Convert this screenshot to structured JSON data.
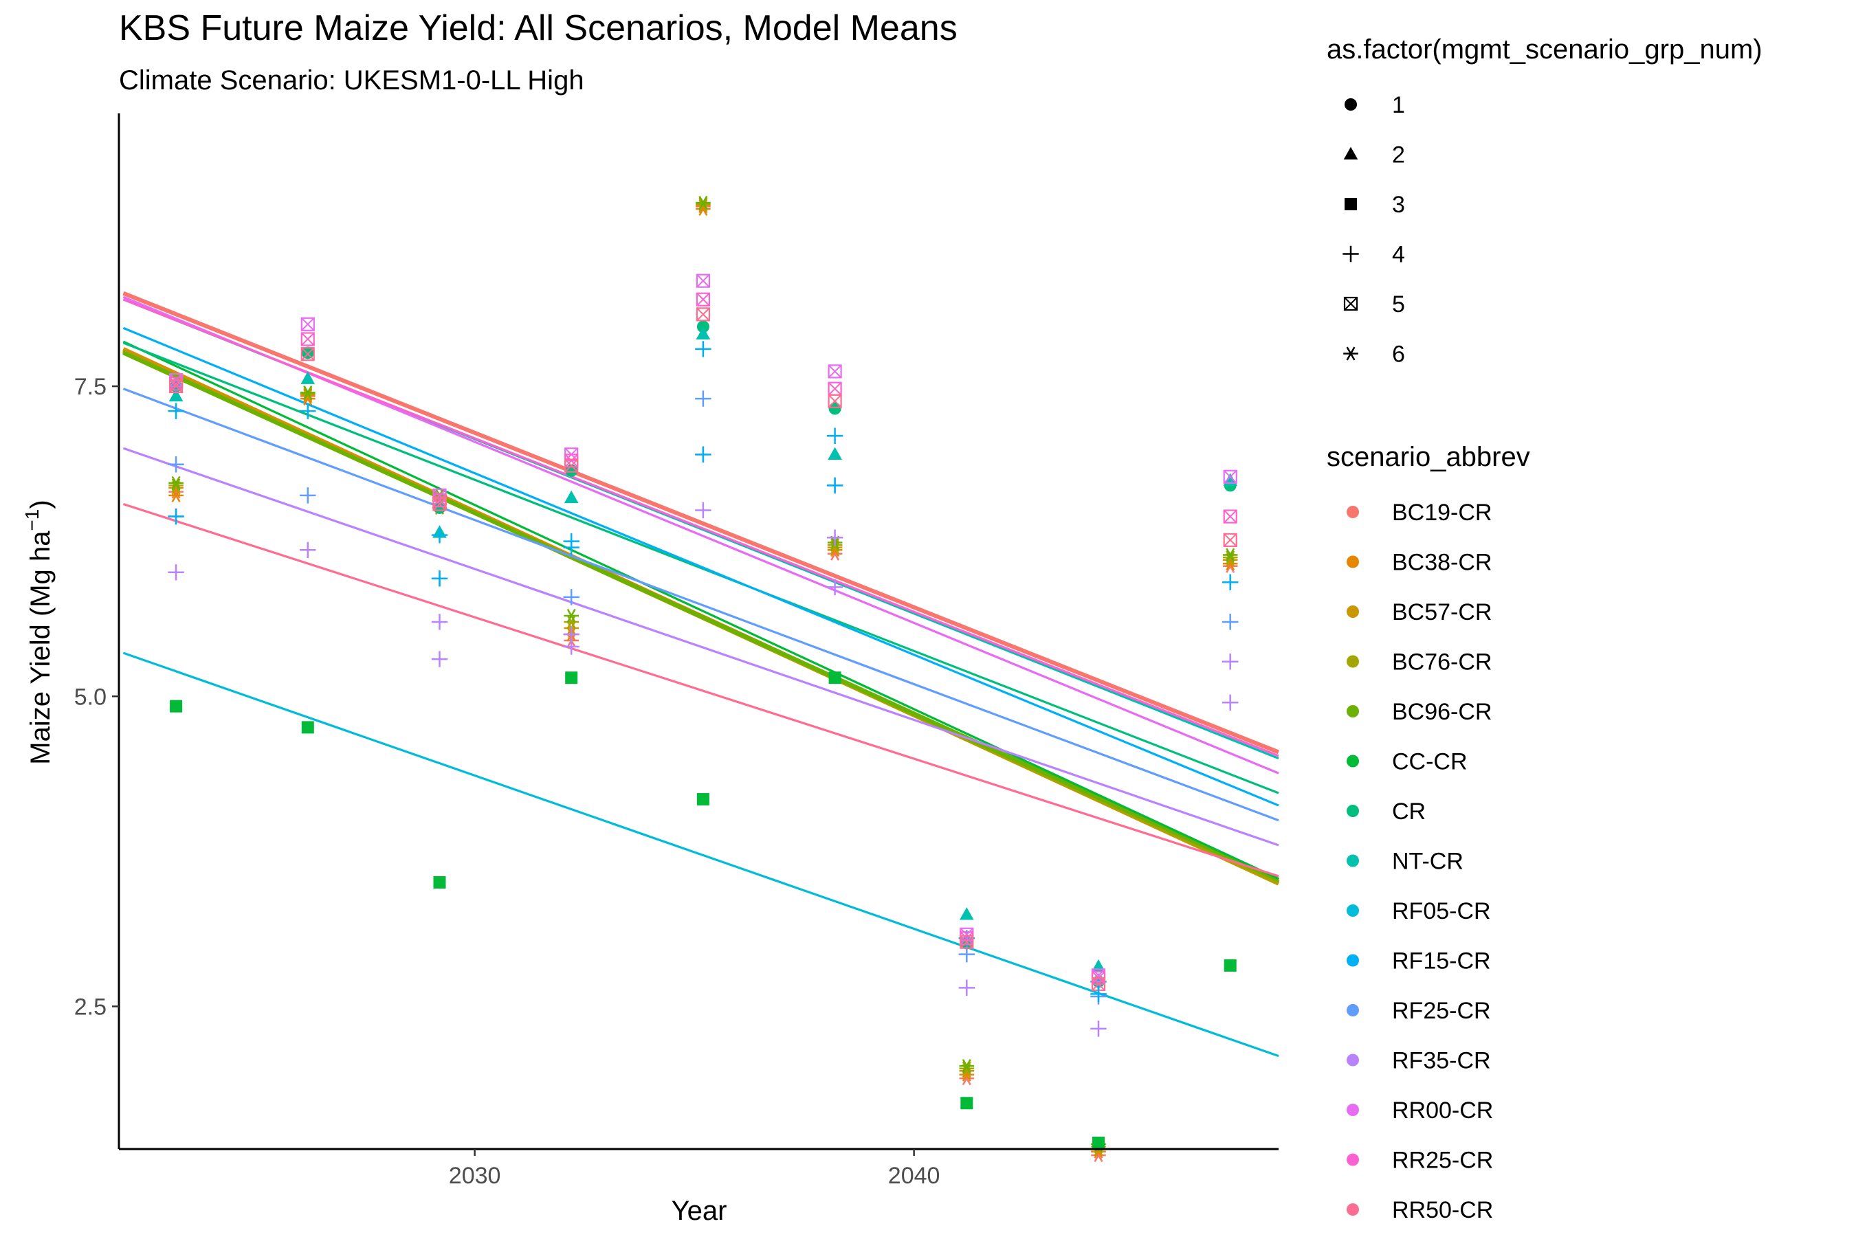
{
  "chart_data": {
    "type": "scatter",
    "title": "KBS  Future Maize Yield: All Scenarios, Model Means",
    "subtitle": "Climate Scenario: UKESM1-0-LL High",
    "xlabel": "Year",
    "ylabel": "Maize Yield (Mg ha",
    "ylabel_sup": "−1",
    "ylabel_close": ")",
    "xlim": [
      2021.9,
      2048.3
    ],
    "ylim": [
      1.35,
      9.7
    ],
    "x_ticks": [
      2030,
      2040
    ],
    "x_tick_labels": [
      "2030",
      "2040"
    ],
    "y_ticks": [
      2.5,
      5.0,
      7.5
    ],
    "y_tick_labels": [
      "2.5",
      "5.0",
      "7.5"
    ],
    "grid": false,
    "legend_placement": "right",
    "shape_legend": {
      "title": "as.factor(mgmt_scenario_grp_num)",
      "items": [
        {
          "label": "1",
          "shape": "circle"
        },
        {
          "label": "2",
          "shape": "triangle"
        },
        {
          "label": "3",
          "shape": "square"
        },
        {
          "label": "4",
          "shape": "plus"
        },
        {
          "label": "5",
          "shape": "boxed-x"
        },
        {
          "label": "6",
          "shape": "asterisk"
        }
      ]
    },
    "series": [
      {
        "name": "BC19-CR",
        "color": "#F8766D",
        "shape": "asterisk",
        "trend": [
          [
            2022,
            8.25
          ],
          [
            2048.3,
            4.55
          ]
        ],
        "points": [
          [
            2023.2,
            6.65
          ],
          [
            2026.2,
            7.42
          ],
          [
            2029.2,
            6.55
          ],
          [
            2032.2,
            5.45
          ],
          [
            2035.2,
            8.95
          ],
          [
            2038.2,
            6.15
          ],
          [
            2041.2,
            1.92
          ],
          [
            2044.2,
            1.3
          ],
          [
            2047.2,
            6.05
          ]
        ]
      },
      {
        "name": "BC38-CR",
        "color": "#E58700",
        "shape": "asterisk",
        "trend": [
          [
            2022,
            7.8
          ],
          [
            2048.3,
            3.5
          ]
        ],
        "points": [
          [
            2023.2,
            6.62
          ],
          [
            2026.2,
            7.4
          ],
          [
            2029.2,
            6.52
          ],
          [
            2032.2,
            5.5
          ],
          [
            2035.2,
            8.93
          ],
          [
            2038.2,
            6.18
          ],
          [
            2041.2,
            1.95
          ],
          [
            2044.2,
            1.33
          ],
          [
            2047.2,
            6.07
          ]
        ]
      },
      {
        "name": "BC57-CR",
        "color": "#C99800",
        "shape": "asterisk",
        "trend": [
          [
            2022,
            7.79
          ],
          [
            2048.3,
            3.49
          ]
        ],
        "points": [
          [
            2023.2,
            6.68
          ],
          [
            2026.2,
            7.43
          ],
          [
            2029.2,
            6.58
          ],
          [
            2032.2,
            5.55
          ],
          [
            2035.2,
            8.96
          ],
          [
            2038.2,
            6.2
          ],
          [
            2041.2,
            1.98
          ],
          [
            2044.2,
            1.35
          ],
          [
            2047.2,
            6.1
          ]
        ]
      },
      {
        "name": "BC76-CR",
        "color": "#A3A500",
        "shape": "asterisk",
        "trend": [
          [
            2022,
            7.78
          ],
          [
            2048.3,
            3.5
          ]
        ],
        "points": [
          [
            2023.2,
            6.7
          ],
          [
            2026.2,
            7.44
          ],
          [
            2029.2,
            6.6
          ],
          [
            2032.2,
            5.6
          ],
          [
            2035.2,
            8.97
          ],
          [
            2038.2,
            6.22
          ],
          [
            2041.2,
            2.0
          ],
          [
            2044.2,
            1.37
          ],
          [
            2047.2,
            6.12
          ]
        ]
      },
      {
        "name": "BC96-CR",
        "color": "#6BB100",
        "shape": "asterisk",
        "trend": [
          [
            2022,
            7.77
          ],
          [
            2048.3,
            3.52
          ]
        ],
        "points": [
          [
            2023.2,
            6.72
          ],
          [
            2026.2,
            7.45
          ],
          [
            2029.2,
            6.62
          ],
          [
            2032.2,
            5.65
          ],
          [
            2035.2,
            8.98
          ],
          [
            2038.2,
            6.24
          ],
          [
            2041.2,
            2.02
          ],
          [
            2044.2,
            1.39
          ],
          [
            2047.2,
            6.14
          ]
        ]
      },
      {
        "name": "CC-CR",
        "color": "#00BA38",
        "shape": "square",
        "trend": [
          [
            2022,
            7.86
          ],
          [
            2048.3,
            3.53
          ]
        ],
        "points": [
          [
            2023.2,
            4.92
          ],
          [
            2026.2,
            4.75
          ],
          [
            2029.2,
            3.5
          ],
          [
            2032.2,
            5.15
          ],
          [
            2035.2,
            4.17
          ],
          [
            2038.2,
            5.15
          ],
          [
            2041.2,
            1.72
          ],
          [
            2044.2,
            1.4
          ],
          [
            2047.2,
            2.83
          ]
        ]
      },
      {
        "name": "CR",
        "color": "#00BF7D",
        "shape": "circle",
        "trend": [
          [
            2022,
            7.85
          ],
          [
            2048.3,
            4.22
          ]
        ],
        "points": [
          [
            2023.2,
            7.5
          ],
          [
            2026.2,
            7.77
          ],
          [
            2029.2,
            6.52
          ],
          [
            2032.2,
            6.82
          ],
          [
            2035.2,
            7.98
          ],
          [
            2038.2,
            7.32
          ],
          [
            2041.2,
            3.01
          ],
          [
            2044.2,
            2.7
          ],
          [
            2047.2,
            6.7
          ]
        ]
      },
      {
        "name": "NT-CR",
        "color": "#00C0AF",
        "shape": "triangle",
        "trend": [
          [
            2022,
            8.2
          ],
          [
            2048.3,
            4.5
          ]
        ],
        "points": [
          [
            2023.2,
            7.42
          ],
          [
            2026.2,
            7.56
          ],
          [
            2029.2,
            6.32
          ],
          [
            2032.2,
            6.6
          ],
          [
            2035.2,
            7.92
          ],
          [
            2038.2,
            6.95
          ],
          [
            2041.2,
            3.24
          ],
          [
            2044.2,
            2.82
          ],
          [
            2047.2,
            6.74
          ]
        ]
      },
      {
        "name": "RF05-CR",
        "color": "#00BCD8",
        "shape": "square",
        "trend": [
          [
            2022,
            5.35
          ],
          [
            2048.3,
            2.1
          ]
        ],
        "points": []
      },
      {
        "name": "RF15-CR",
        "color": "#00B0F6",
        "shape": "plus",
        "trend": [
          [
            2022,
            7.97
          ],
          [
            2048.3,
            4.12
          ]
        ],
        "points": [
          [
            2023.2,
            7.3
          ],
          [
            2026.2,
            7.3
          ],
          [
            2029.2,
            6.3
          ],
          [
            2032.2,
            6.25
          ],
          [
            2035.2,
            7.8
          ],
          [
            2038.2,
            7.1
          ],
          [
            2041.2,
            3.05
          ],
          [
            2044.2,
            2.7
          ],
          [
            2047.2,
            5.92
          ]
        ]
      },
      {
        "name": "RF25-CR",
        "color": "#619CFF",
        "shape": "plus",
        "trend": [
          [
            2022,
            7.48
          ],
          [
            2048.3,
            4.0
          ]
        ],
        "points": [
          [
            2023.2,
            6.87
          ],
          [
            2026.2,
            6.62
          ],
          [
            2029.2,
            5.95
          ],
          [
            2032.2,
            5.8
          ],
          [
            2035.2,
            7.4
          ],
          [
            2038.2,
            6.7
          ],
          [
            2041.2,
            2.92
          ],
          [
            2044.2,
            2.58
          ],
          [
            2047.2,
            5.6
          ]
        ]
      },
      {
        "name": "RF35-CR",
        "color": "#B983FF",
        "shape": "plus",
        "trend": [
          [
            2022,
            7.0
          ],
          [
            2048.3,
            3.8
          ]
        ],
        "points": [
          [
            2023.2,
            6.45
          ],
          [
            2026.2,
            6.18
          ],
          [
            2029.2,
            5.6
          ],
          [
            2032.2,
            5.5
          ],
          [
            2035.2,
            6.95
          ],
          [
            2038.2,
            6.28
          ],
          [
            2041.2,
            2.65
          ],
          [
            2044.2,
            2.32
          ],
          [
            2047.2,
            5.28
          ]
        ]
      },
      {
        "name": "RR00-CR",
        "color": "#E76BF3",
        "shape": "boxed-x",
        "trend": [
          [
            2022,
            8.22
          ],
          [
            2048.3,
            4.38
          ]
        ],
        "points": [
          [
            2023.2,
            7.55
          ],
          [
            2026.2,
            8.0
          ],
          [
            2029.2,
            6.62
          ],
          [
            2032.2,
            6.95
          ],
          [
            2035.2,
            8.35
          ],
          [
            2038.2,
            7.62
          ],
          [
            2041.2,
            3.08
          ],
          [
            2044.2,
            2.75
          ],
          [
            2047.2,
            6.77
          ]
        ]
      },
      {
        "name": "RR25-CR",
        "color": "#FD61D1",
        "shape": "boxed-x",
        "trend": [
          [
            2022,
            8.2
          ],
          [
            2048.3,
            4.52
          ]
        ],
        "points": [
          [
            2023.2,
            7.52
          ],
          [
            2026.2,
            7.88
          ],
          [
            2029.2,
            6.58
          ],
          [
            2032.2,
            6.9
          ],
          [
            2035.2,
            8.2
          ],
          [
            2038.2,
            7.48
          ],
          [
            2041.2,
            3.05
          ],
          [
            2044.2,
            2.73
          ],
          [
            2047.2,
            6.45
          ]
        ]
      },
      {
        "name": "RR50-CR",
        "color": "#FF6C91",
        "shape": "boxed-x",
        "trend": [
          [
            2022,
            6.55
          ],
          [
            2048.3,
            3.55
          ]
        ],
        "points": [
          [
            2023.2,
            7.5
          ],
          [
            2026.2,
            7.76
          ],
          [
            2029.2,
            6.55
          ],
          [
            2032.2,
            6.86
          ],
          [
            2035.2,
            8.08
          ],
          [
            2038.2,
            7.38
          ],
          [
            2041.2,
            3.02
          ],
          [
            2044.2,
            2.68
          ],
          [
            2047.2,
            6.26
          ]
        ]
      }
    ],
    "extra_markers": [
      {
        "series": "RF35-CR",
        "color": "#B983FF",
        "shape": "plus",
        "points": [
          [
            2023.2,
            6.0
          ],
          [
            2029.2,
            5.3
          ],
          [
            2032.2,
            5.4
          ],
          [
            2035.2,
            6.5
          ],
          [
            2038.2,
            5.88
          ],
          [
            2047.2,
            4.95
          ]
        ]
      },
      {
        "series": "RF15-CR",
        "color": "#00B0F6",
        "shape": "plus",
        "points": [
          [
            2023.2,
            6.45
          ],
          [
            2029.2,
            5.95
          ],
          [
            2032.2,
            6.2
          ],
          [
            2035.2,
            6.95
          ],
          [
            2038.2,
            6.7
          ],
          [
            2044.2,
            2.6
          ]
        ]
      }
    ]
  }
}
